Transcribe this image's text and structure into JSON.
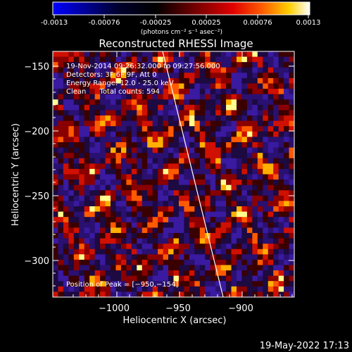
{
  "colorbar": {
    "ticks": [
      "-0.0013",
      "-0.00076",
      "-0.00025",
      "0.00025",
      "0.00076",
      "0.0013"
    ],
    "unit_label": "(photons cm⁻² s⁻¹ asec⁻²)",
    "colors": [
      "#0000ff",
      "#000020",
      "#000000",
      "#5a0000",
      "#c00000",
      "#ff5000",
      "#ffb000",
      "#ffff80",
      "#ffffff"
    ]
  },
  "plot": {
    "title": "Reconstructed RHESSI Image",
    "xlabel": "Heliocentric X (arcsec)",
    "ylabel": "Heliocentric Y (arcsec)",
    "x_ticks": [
      "−1000",
      "−950",
      "−900"
    ],
    "y_ticks": [
      "−150",
      "−200",
      "−250",
      "−300"
    ],
    "xlim": [
      -1047,
      -900
    ],
    "ylim": [
      -325,
      -140
    ]
  },
  "annotations": {
    "line1": "19-Nov-2014 09:26:32.000 to 09:27:56.000",
    "line2": "Detectors: 3F 6F 9F, Att 0",
    "line3": "Energy Range: 12.0 - 25.0 keV",
    "line4": "Clean      Total counts: 594",
    "peak": "Position of Peak = [−950,−154]"
  },
  "footer": {
    "timestamp": "19-May-2022 17:13"
  }
}
